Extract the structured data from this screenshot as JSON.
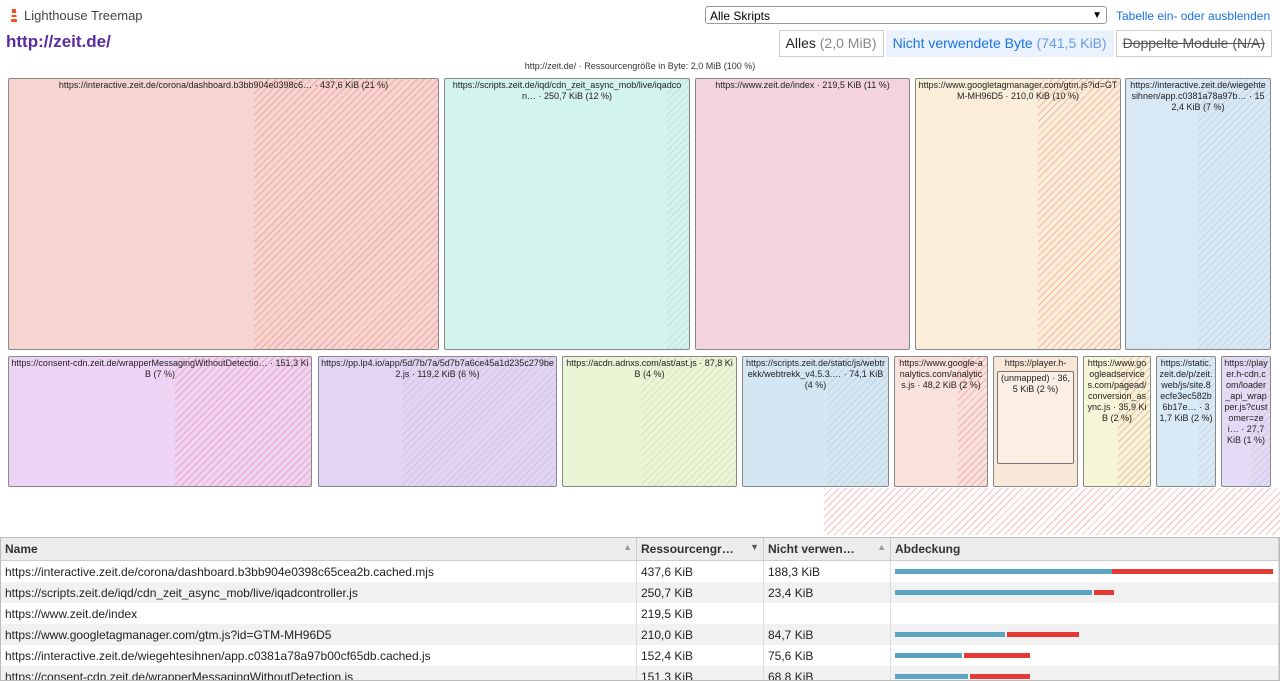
{
  "header": {
    "app_title": "Lighthouse Treemap",
    "page_url": "http://zeit.de/",
    "bundle_select": "Alle Skripts",
    "toggle_table": "Tabelle ein- oder ausblenden"
  },
  "filters": [
    {
      "label": "Alles",
      "value": "(2,0 MiB)"
    },
    {
      "label": "Nicht verwendete Byte",
      "value": "(741,5 KiB)"
    },
    {
      "label": "Doppelte Module",
      "value": "(N/A)"
    }
  ],
  "treemap": {
    "title": "http://zeit.de/ · Ressourcengröße in Byte: 2,0 MiB (100 %)",
    "nodes": [
      {
        "label": "https://interactive.zeit.de/corona/dashboard.b3bb904e0398c6… · 437,6 KiB (21 %)",
        "color": "#f6d5d1"
      },
      {
        "label": "https://scripts.zeit.de/iqd/cdn_zeit_async_mob/live/iqadcon… · 250,7 KiB (12 %)",
        "color": "#d3f3ef"
      },
      {
        "label": "https://www.zeit.de/index · 219,5 KiB (11 %)",
        "color": "#f3d3e0"
      },
      {
        "label": "https://www.googletagmanager.com/gtm.js?id=GTM-MH96D5 · 210,0 KiB (10 %)",
        "color": "#fbeed9"
      },
      {
        "label": "https://interactive.zeit.de/wiegehtesihnen/app.c0381a78a97b… · 152,4 KiB (7 %)",
        "color": "#d8e8f5"
      },
      {
        "label": "https://consent-cdn.zeit.de/wrapperMessagingWithoutDetectio… · 151,3 KiB (7 %)",
        "color": "#efd3f4"
      },
      {
        "label": "https://pp.lp4.io/app/5d/7b/7a/5d7b7a6ce45a1d235c279be2.js · 119,2 KiB (6 %)",
        "color": "#e2d5f4"
      },
      {
        "label": "https://acdn.adnxs.com/ast/ast.js · 87,8 KiB (4 %)",
        "color": "#eaf5d5"
      },
      {
        "label": "https://scripts.zeit.de/static/js/webtrekk/webtrekk_v4.5.3.… · 74,1 KiB (4 %)",
        "color": "#d5e6f3"
      },
      {
        "label": "https://www.google-analytics.com/analytics.js · 48,2 KiB (2 %)",
        "color": "#f9e1dc"
      },
      {
        "label": "https://player.h-",
        "color": "#f8e6d6"
      },
      {
        "label": "https://www.googleadservices.com/pagead/conversion_async.js · 35,9 KiB (2 %)",
        "color": "#f6f5d8"
      },
      {
        "label": "https://static.zeit.de/p/zeit.web/js/site.8ecfe3ec582b6b17e… · 31,7 KiB (2 %)",
        "color": "#dae9f6"
      },
      {
        "label": "https://player.h-cdn.com/loader_api_wrapper.js?customer=zei… · 27,7 KiB (1 %)",
        "color": "#e3dbf5"
      }
    ],
    "inner_node_label": "(unmapped) · 36,5 KiB (2 %)"
  },
  "table": {
    "headers": [
      "Name",
      "Ressourcengr…",
      "Nicht verwen…",
      "Abdeckung"
    ],
    "rows": [
      {
        "name": "https://interactive.zeit.de/corona/dashboard.b3bb904e0398c65cea2b.cached.mjs",
        "size": "437,6 KiB",
        "unused": "188,3 KiB"
      },
      {
        "name": "https://scripts.zeit.de/iqd/cdn_zeit_async_mob/live/iqadcontroller.js",
        "size": "250,7 KiB",
        "unused": "23,4 KiB"
      },
      {
        "name": "https://www.zeit.de/index",
        "size": "219,5 KiB",
        "unused": ""
      },
      {
        "name": "https://www.googletagmanager.com/gtm.js?id=GTM-MH96D5",
        "size": "210,0 KiB",
        "unused": "84,7 KiB"
      },
      {
        "name": "https://interactive.zeit.de/wiegehtesihnen/app.c0381a78a97b00cf65db.cached.js",
        "size": "152,4 KiB",
        "unused": "75,6 KiB"
      },
      {
        "name": "https://consent-cdn.zeit.de/wrapperMessagingWithoutDetection.js",
        "size": "151,3 KiB",
        "unused": "68,8 KiB"
      }
    ]
  },
  "colors": {
    "coverage_used": "#5aa6c2",
    "coverage_unused": "#e53935",
    "accent": "#1a73e8",
    "title": "#5b2ca0"
  }
}
